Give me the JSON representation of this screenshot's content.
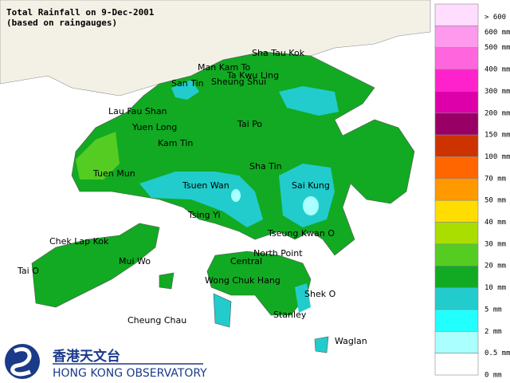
{
  "title": [
    "Total Rainfall on 9-Dec-2001",
    "(based on raingauges)"
  ],
  "places": [
    "Sha Tau Kok",
    "Man Kam To",
    "Ta Kwu Ling",
    "San Tin",
    "Sheung Shui",
    "Lau Fau Shan",
    "Yuen Long",
    "Tai Po",
    "Kam Tin",
    "Sha Tin",
    "Tuen Mun",
    "Tsuen Wan",
    "Sai Kung",
    "Tsing Yi",
    "Tseung Kwan O",
    "Chek Lap Kok",
    "North Point",
    "Mui Wo",
    "Central",
    "Tai O",
    "Wong Chuk Hang",
    "Shek O",
    "Stanley",
    "Cheung Chau",
    "Waglan"
  ],
  "legend": {
    "labels": [
      "> 600 mm",
      "600 mm",
      "500 mm",
      "400 mm",
      "300 mm",
      "200 mm",
      "150 mm",
      "100 mm",
      "70 mm",
      "50 mm",
      "40 mm",
      "30 mm",
      "20 mm",
      "10 mm",
      "5 mm",
      "2 mm",
      "0.5 mm",
      "0 mm"
    ],
    "colors": [
      "#ffddff",
      "#ff99ee",
      "#ff66dd",
      "#ff22cc",
      "#dd00aa",
      "#990066",
      "#cc3300",
      "#ff6600",
      "#ff9900",
      "#ffdd00",
      "#aadd00",
      "#55cc22",
      "#11aa22",
      "#22cccc",
      "#22ffff",
      "#aaffff",
      "#ffffff"
    ]
  },
  "logo": {
    "chinese": "香港天文台",
    "english": "HONG KONG OBSERVATORY"
  }
}
